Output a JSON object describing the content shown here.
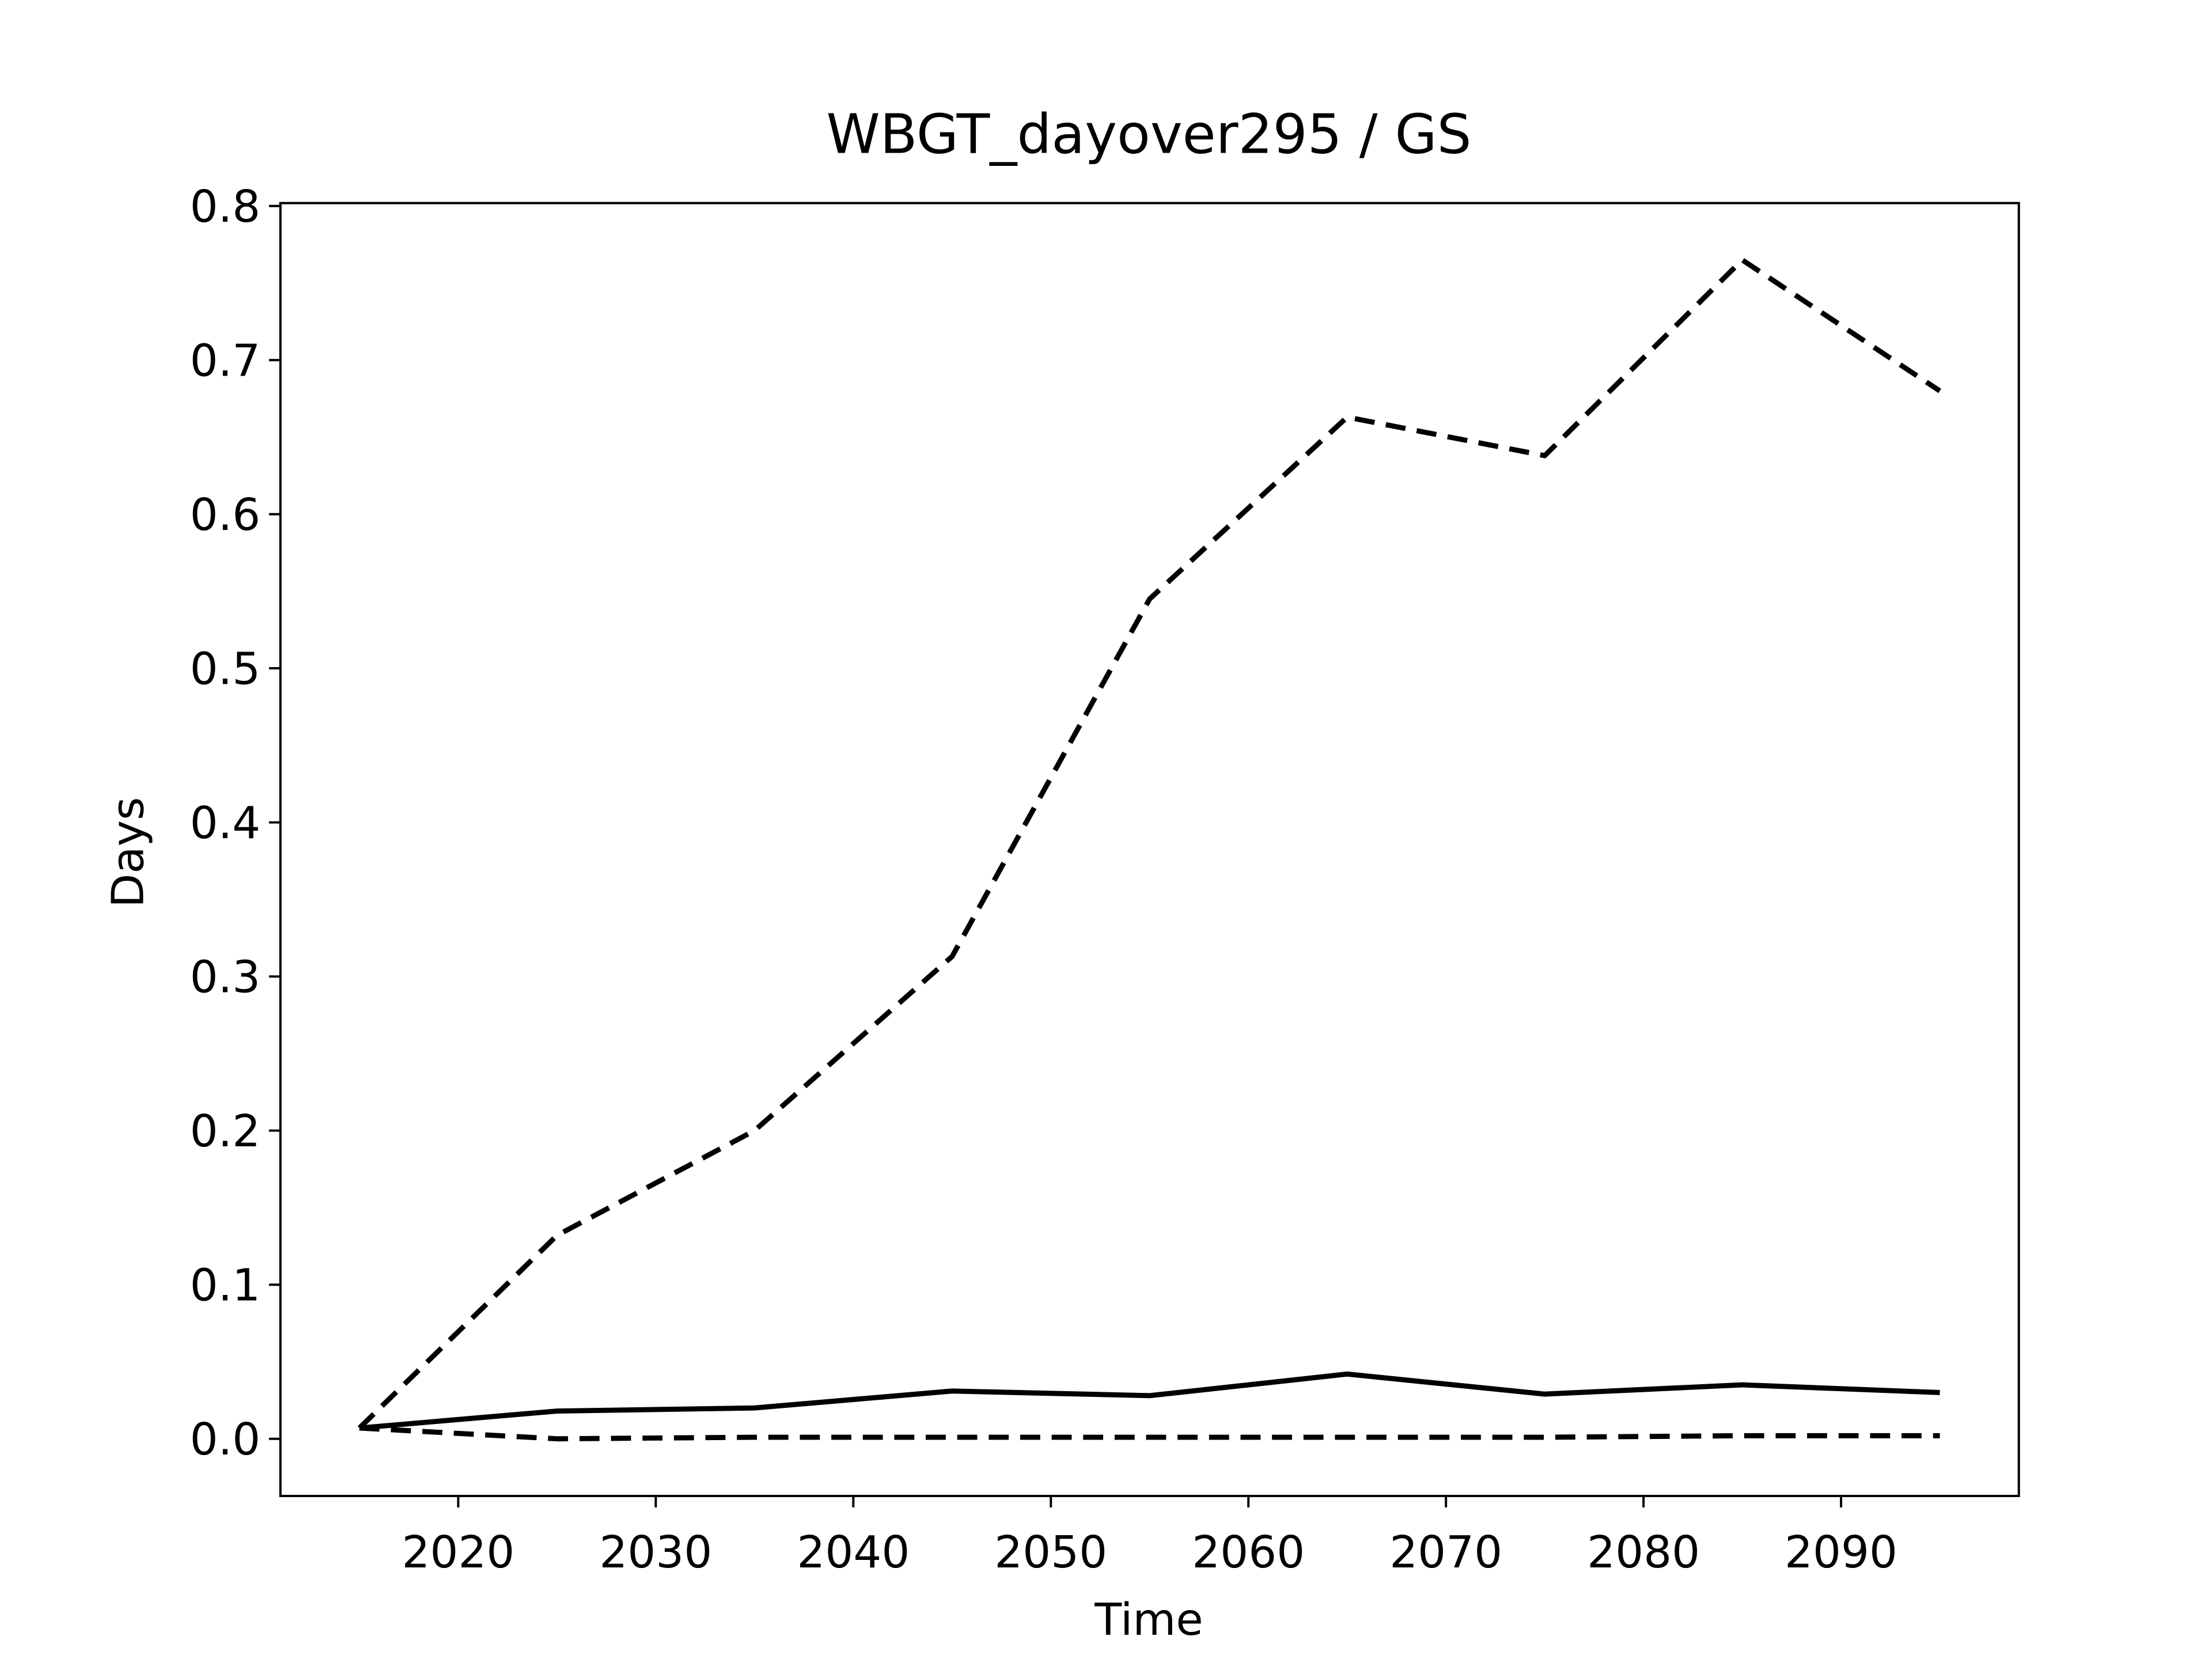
{
  "chart_data": {
    "type": "line",
    "title": "WBGT_dayover295 / GS",
    "xlabel": "Time",
    "ylabel": "Days",
    "x": [
      2015,
      2025,
      2035,
      2045,
      2055,
      2065,
      2075,
      2085,
      2095
    ],
    "series": [
      {
        "color": "#000000",
        "dash": true,
        "values": [
          0.007,
          0.132,
          0.2,
          0.313,
          0.545,
          0.663,
          0.638,
          0.765,
          0.68
        ]
      },
      {
        "color": "#000000",
        "dash": false,
        "values": [
          0.007,
          0.018,
          0.02,
          0.031,
          0.028,
          0.042,
          0.029,
          0.035,
          0.03
        ]
      },
      {
        "color": "#000000",
        "dash": true,
        "values": [
          0.007,
          0.0,
          0.001,
          0.001,
          0.001,
          0.001,
          0.001,
          0.002,
          0.002
        ]
      }
    ],
    "xlim": [
      2011,
      2099
    ],
    "xticks": [
      2020,
      2030,
      2040,
      2050,
      2060,
      2070,
      2080,
      2090
    ],
    "ylim": [
      -0.0371,
      0.8019
    ],
    "yticks": [
      {
        "value": 0,
        "label": "0.0"
      },
      0.1,
      0.2,
      0.3,
      0.4,
      0.5,
      0.6,
      0.7,
      0.8
    ],
    "grid": false
  }
}
